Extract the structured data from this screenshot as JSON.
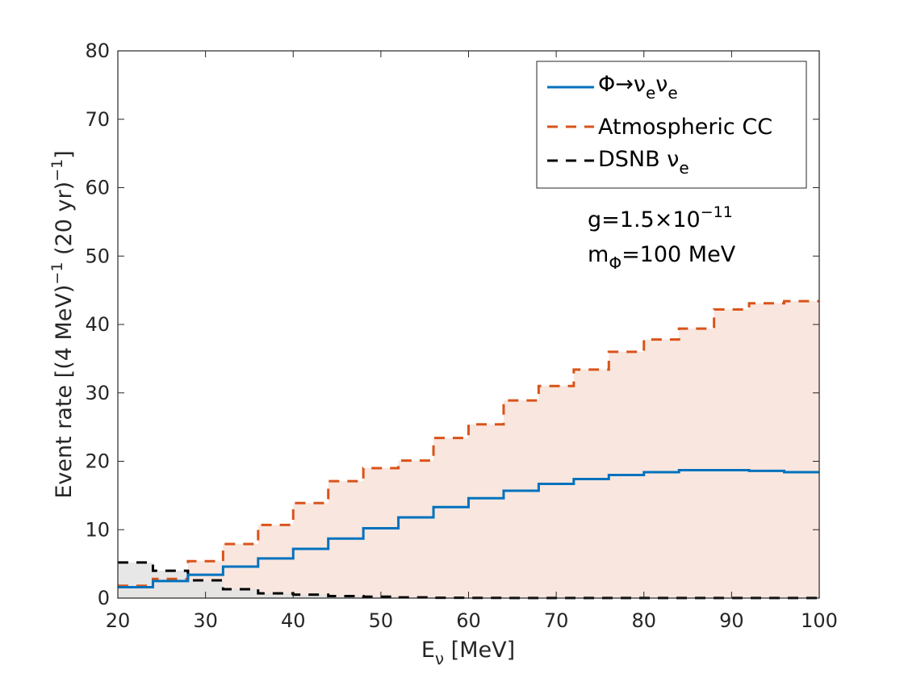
{
  "chart_data": {
    "type": "line",
    "title": "",
    "xlabel": {
      "main": "E",
      "sub": "ν",
      "unit": " [MeV]"
    },
    "ylabel": {
      "prefix": "Event rate [(4 MeV)",
      "sup1": "−1",
      "middle": " (20 yr)",
      "sup2": "−1",
      "suffix": "]"
    },
    "xlim": [
      20,
      100
    ],
    "ylim": [
      0,
      80
    ],
    "xticks": [
      "20",
      "30",
      "40",
      "50",
      "60",
      "70",
      "80",
      "90",
      "100"
    ],
    "yticks": [
      "0",
      "10",
      "20",
      "30",
      "40",
      "50",
      "60",
      "70",
      "80"
    ],
    "bin_edges": [
      20,
      24,
      28,
      32,
      36,
      40,
      44,
      48,
      52,
      56,
      60,
      64,
      68,
      72,
      76,
      80,
      84,
      88,
      92,
      96,
      100
    ],
    "series": [
      {
        "name": "Φ→νeνe",
        "label": {
          "main": "Φ→ν",
          "sub1": "e",
          "mid": "ν",
          "sub2": "e"
        },
        "style": "solid-step",
        "color": "#0072BD",
        "values": [
          1.6,
          2.5,
          3.4,
          4.6,
          5.8,
          7.2,
          8.7,
          10.2,
          11.8,
          13.3,
          14.6,
          15.7,
          16.7,
          17.4,
          18.0,
          18.4,
          18.7,
          18.7,
          18.6,
          18.4
        ]
      },
      {
        "name": "Atmospheric CC",
        "label": {
          "main": "Atmospheric CC"
        },
        "style": "dashed-step",
        "color": "#D95319",
        "fill": "#F9E6DF",
        "values": [
          1.8,
          2.8,
          5.4,
          7.9,
          10.7,
          13.9,
          17.1,
          19.0,
          20.1,
          23.4,
          25.4,
          28.9,
          31.0,
          33.4,
          36.0,
          37.8,
          39.4,
          42.2,
          43.1,
          43.4
        ]
      },
      {
        "name": "DSNB νe",
        "label": {
          "main": "DSNB ν",
          "sub": "e"
        },
        "style": "dashed-step",
        "color": "#000000",
        "fill": "#E3E3E3",
        "values": [
          5.2,
          4.0,
          2.6,
          1.3,
          0.7,
          0.5,
          0.3,
          0.2,
          0.1,
          0.05,
          0.03,
          0.02,
          0.02,
          0.01,
          0.01,
          0.01,
          0.01,
          0.01,
          0.01,
          0.01
        ]
      }
    ],
    "legend_position": "top-right",
    "annotation": {
      "line1": {
        "prefix": "g=1.5×10",
        "sup": "−11"
      },
      "line2": {
        "prefix": "m",
        "sub": "Φ",
        "suffix": "=100 MeV"
      }
    }
  }
}
